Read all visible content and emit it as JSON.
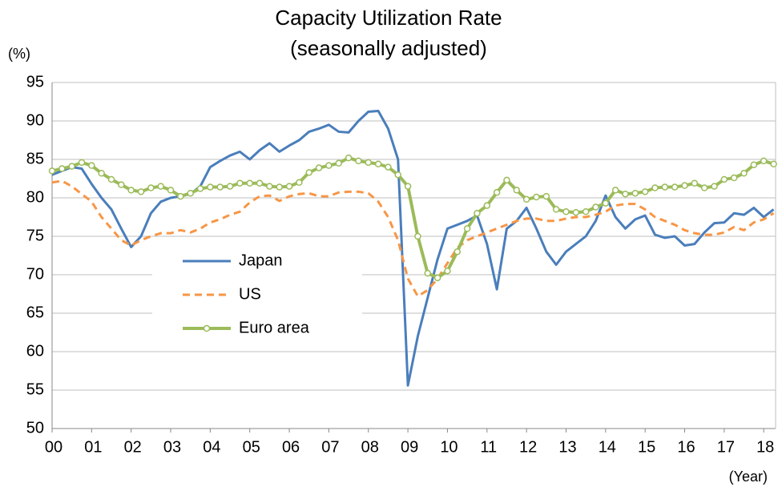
{
  "chart_data": {
    "type": "line",
    "title": "Capacity Utilization Rate",
    "subtitle": "(seasonally adjusted)",
    "y_label": "(%)",
    "x_label": "(Year)",
    "x": [
      2000,
      2000.25,
      2000.5,
      2000.75,
      2001,
      2001.25,
      2001.5,
      2001.75,
      2002,
      2002.25,
      2002.5,
      2002.75,
      2003,
      2003.25,
      2003.5,
      2003.75,
      2004,
      2004.25,
      2004.5,
      2004.75,
      2005,
      2005.25,
      2005.5,
      2005.75,
      2006,
      2006.25,
      2006.5,
      2006.75,
      2007,
      2007.25,
      2007.5,
      2007.75,
      2008,
      2008.25,
      2008.5,
      2008.75,
      2009,
      2009.25,
      2009.5,
      2009.75,
      2010,
      2010.25,
      2010.5,
      2010.75,
      2011,
      2011.25,
      2011.5,
      2011.75,
      2012,
      2012.25,
      2012.5,
      2012.75,
      2013,
      2013.25,
      2013.5,
      2013.75,
      2014,
      2014.25,
      2014.5,
      2014.75,
      2015,
      2015.25,
      2015.5,
      2015.75,
      2016,
      2016.25,
      2016.5,
      2016.75,
      2017,
      2017.25,
      2017.5,
      2017.75,
      2018,
      2018.25
    ],
    "series": [
      {
        "name": "Japan",
        "color": "#4a7ebb",
        "dash": false,
        "markers": false,
        "values": [
          83,
          83.5,
          84,
          83.8,
          81.8,
          80,
          78.5,
          76,
          73.6,
          75,
          78,
          79.5,
          80,
          80.2,
          80.5,
          81.5,
          84,
          84.8,
          85.5,
          86,
          85,
          86.2,
          87.1,
          86,
          86.8,
          87.5,
          88.6,
          89,
          89.5,
          88.6,
          88.5,
          90,
          91.2,
          91.3,
          89,
          85,
          55.6,
          62,
          67,
          72,
          76,
          76.5,
          77,
          77.7,
          74,
          68.1,
          76,
          77,
          78.7,
          76,
          73,
          71.3,
          73,
          74,
          75,
          77,
          80.3,
          77.5,
          76,
          77.2,
          77.7,
          75.2,
          74.8,
          75,
          73.8,
          74,
          75.5,
          76.7,
          76.8,
          78,
          77.8,
          78.7,
          77.5,
          78.5
        ]
      },
      {
        "name": "US",
        "color": "#f79646",
        "dash": true,
        "markers": false,
        "values": [
          82,
          82.2,
          81.5,
          80.5,
          79.5,
          77.5,
          76,
          74.5,
          73.8,
          74.5,
          75,
          75.4,
          75.4,
          75.8,
          75.5,
          76,
          76.8,
          77.2,
          77.8,
          78.2,
          79.4,
          80.2,
          80.3,
          79.6,
          80.2,
          80.5,
          80.6,
          80.2,
          80.2,
          80.7,
          80.8,
          80.8,
          80.6,
          79.5,
          77.5,
          74.5,
          69.5,
          67.2,
          68,
          69.5,
          71.5,
          73.5,
          74.5,
          75,
          75.5,
          76,
          76.5,
          77,
          77.3,
          77.3,
          77,
          77,
          77.3,
          77.5,
          77.5,
          77.8,
          78.2,
          79,
          79.2,
          79.2,
          78.5,
          77.5,
          77,
          76.5,
          75.8,
          75.4,
          75.2,
          75.2,
          75.5,
          76.2,
          75.8,
          76.8,
          77.2,
          78
        ]
      },
      {
        "name": "Euro area",
        "color": "#9bbb59",
        "dash": false,
        "markers": true,
        "values": [
          83.5,
          83.8,
          84.1,
          84.6,
          84.2,
          83.2,
          82.4,
          81.7,
          81,
          80.8,
          81.3,
          81.5,
          81,
          80.2,
          80.6,
          81.2,
          81.4,
          81.4,
          81.5,
          81.9,
          81.9,
          81.9,
          81.5,
          81.4,
          81.5,
          82,
          83.3,
          83.9,
          84.2,
          84.5,
          85.2,
          84.8,
          84.6,
          84.4,
          84,
          83,
          81.5,
          75,
          70.2,
          69.6,
          70.5,
          73,
          76,
          78,
          79,
          80.7,
          82.3,
          81,
          79.8,
          80.1,
          80.2,
          78.5,
          78.2,
          78.1,
          78.2,
          78.8,
          79.3,
          81,
          80.5,
          80.6,
          80.8,
          81.3,
          81.4,
          81.4,
          81.6,
          81.9,
          81.3,
          81.5,
          82.4,
          82.6,
          83.2,
          84.3,
          84.8,
          84.4
        ]
      }
    ],
    "xlim": [
      2000,
      2018.3
    ],
    "xticks": [
      {
        "value": 2000,
        "label": "00"
      },
      {
        "value": 2001,
        "label": "01"
      },
      {
        "value": 2002,
        "label": "02"
      },
      {
        "value": 2003,
        "label": "03"
      },
      {
        "value": 2004,
        "label": "04"
      },
      {
        "value": 2005,
        "label": "05"
      },
      {
        "value": 2006,
        "label": "06"
      },
      {
        "value": 2007,
        "label": "07"
      },
      {
        "value": 2008,
        "label": "08"
      },
      {
        "value": 2009,
        "label": "09"
      },
      {
        "value": 2010,
        "label": "10"
      },
      {
        "value": 2011,
        "label": "11"
      },
      {
        "value": 2012,
        "label": "12"
      },
      {
        "value": 2013,
        "label": "13"
      },
      {
        "value": 2014,
        "label": "14"
      },
      {
        "value": 2015,
        "label": "15"
      },
      {
        "value": 2016,
        "label": "16"
      },
      {
        "value": 2017,
        "label": "17"
      },
      {
        "value": 2018,
        "label": "18"
      }
    ],
    "ylim": [
      50,
      95
    ],
    "yticks": [
      50,
      55,
      60,
      65,
      70,
      75,
      80,
      85,
      90,
      95
    ],
    "grid": true
  }
}
